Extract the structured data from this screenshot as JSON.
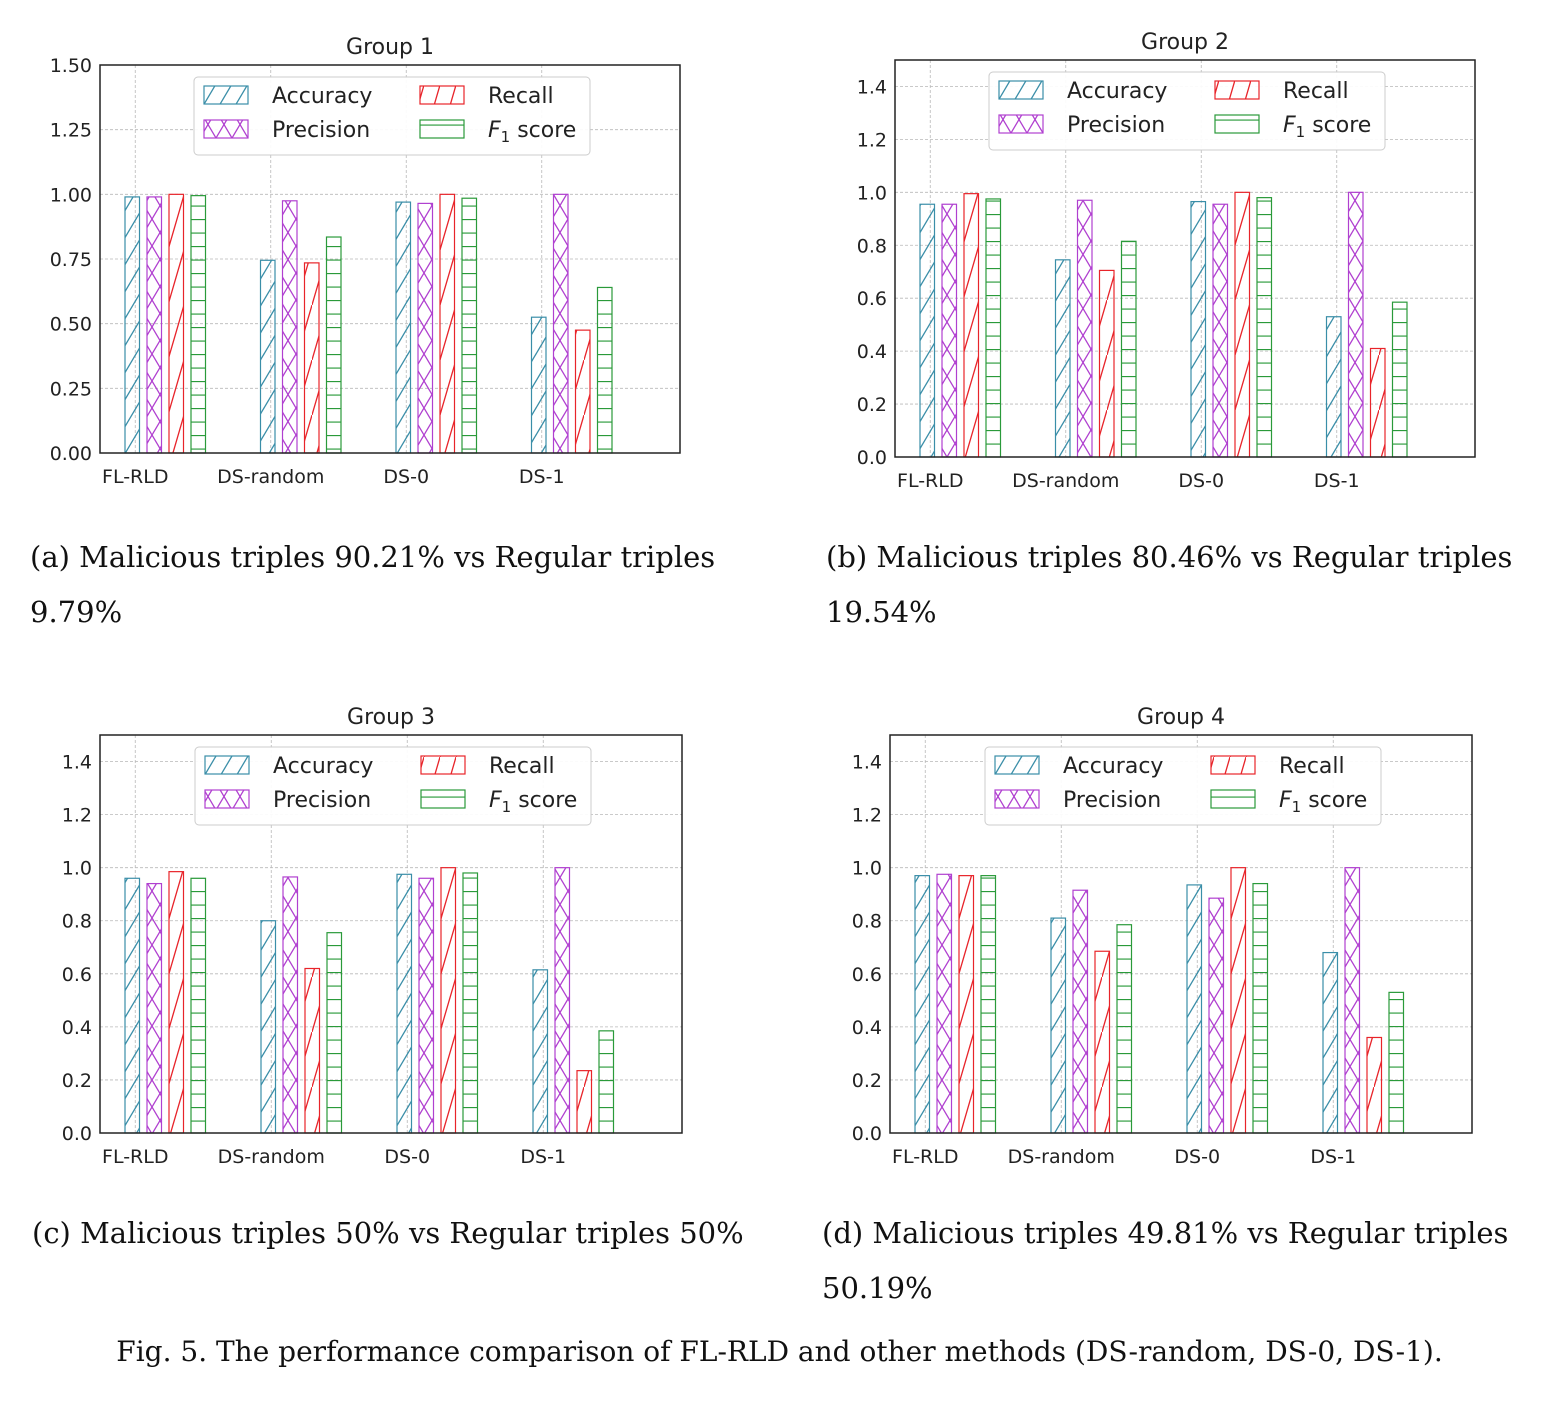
{
  "chart_data": [
    {
      "type": "bar",
      "title": "Group 1",
      "categories": [
        "FL-RLD",
        "DS-random",
        "DS-0",
        "DS-1"
      ],
      "ylim": [
        0,
        1.5
      ],
      "yticks": [
        "0.00",
        "0.25",
        "0.50",
        "0.75",
        "1.00",
        "1.25",
        "1.50"
      ],
      "grid": true,
      "legend_position": "top-center",
      "series": [
        {
          "name": "Accuracy",
          "values": [
            0.99,
            0.745,
            0.97,
            0.525
          ]
        },
        {
          "name": "Precision",
          "values": [
            0.99,
            0.975,
            0.965,
            1.0
          ]
        },
        {
          "name": "Recall",
          "values": [
            1.0,
            0.735,
            1.0,
            0.475
          ]
        },
        {
          "name": "F1 score",
          "values": [
            0.995,
            0.835,
            0.985,
            0.64
          ]
        }
      ],
      "caption": "(a) Malicious triples 90.21% vs Regular triples 9.79%"
    },
    {
      "type": "bar",
      "title": "Group 2",
      "categories": [
        "FL-RLD",
        "DS-random",
        "DS-0",
        "DS-1"
      ],
      "ylim": [
        0,
        1.5
      ],
      "yticks": [
        "0.0",
        "0.2",
        "0.4",
        "0.6",
        "0.8",
        "1.0",
        "1.2",
        "1.4"
      ],
      "grid": true,
      "legend_position": "top-center",
      "series": [
        {
          "name": "Accuracy",
          "values": [
            0.955,
            0.745,
            0.965,
            0.53
          ]
        },
        {
          "name": "Precision",
          "values": [
            0.955,
            0.97,
            0.955,
            1.0
          ]
        },
        {
          "name": "Recall",
          "values": [
            0.995,
            0.705,
            1.0,
            0.41
          ]
        },
        {
          "name": "F1 score",
          "values": [
            0.975,
            0.815,
            0.98,
            0.585
          ]
        }
      ],
      "caption": "(b) Malicious triples 80.46% vs Regular triples 19.54%"
    },
    {
      "type": "bar",
      "title": "Group 3",
      "categories": [
        "FL-RLD",
        "DS-random",
        "DS-0",
        "DS-1"
      ],
      "ylim": [
        0,
        1.5
      ],
      "yticks": [
        "0.0",
        "0.2",
        "0.4",
        "0.6",
        "0.8",
        "1.0",
        "1.2",
        "1.4"
      ],
      "grid": true,
      "legend_position": "top-center",
      "series": [
        {
          "name": "Accuracy",
          "values": [
            0.96,
            0.8,
            0.975,
            0.615
          ]
        },
        {
          "name": "Precision",
          "values": [
            0.94,
            0.965,
            0.96,
            1.0
          ]
        },
        {
          "name": "Recall",
          "values": [
            0.985,
            0.62,
            1.0,
            0.235
          ]
        },
        {
          "name": "F1 score",
          "values": [
            0.96,
            0.755,
            0.98,
            0.385
          ]
        }
      ],
      "caption": "(c) Malicious triples 50% vs Regular triples 50%"
    },
    {
      "type": "bar",
      "title": "Group 4",
      "categories": [
        "FL-RLD",
        "DS-random",
        "DS-0",
        "DS-1"
      ],
      "ylim": [
        0,
        1.5
      ],
      "yticks": [
        "0.0",
        "0.2",
        "0.4",
        "0.6",
        "0.8",
        "1.0",
        "1.2",
        "1.4"
      ],
      "grid": true,
      "legend_position": "top-center",
      "series": [
        {
          "name": "Accuracy",
          "values": [
            0.97,
            0.81,
            0.935,
            0.68
          ]
        },
        {
          "name": "Precision",
          "values": [
            0.975,
            0.915,
            0.885,
            1.0
          ]
        },
        {
          "name": "Recall",
          "values": [
            0.97,
            0.685,
            1.0,
            0.36
          ]
        },
        {
          "name": "F1 score",
          "values": [
            0.97,
            0.785,
            0.94,
            0.53
          ]
        }
      ],
      "caption": "(d) Malicious triples 49.81% vs Regular triples 50.19%"
    }
  ],
  "series_colors": [
    "#3a8ea8",
    "#b040d0",
    "#e8242a",
    "#2a9a3a"
  ],
  "series_hatch": [
    "diagonal",
    "cross",
    "diagonal-sparse",
    "horizontal"
  ],
  "figure_caption": "Fig. 5.  The performance comparison of FL-RLD and other methods (DS-random, DS-0, DS-1)."
}
